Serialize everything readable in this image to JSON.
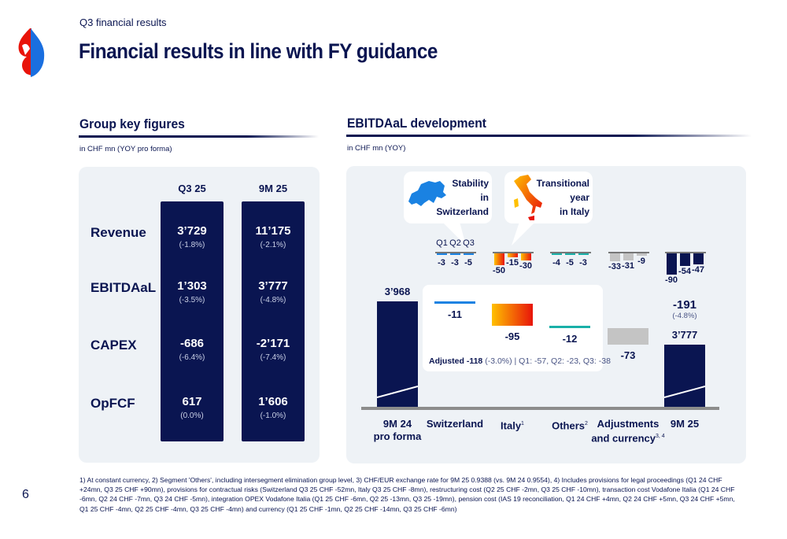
{
  "header": {
    "kicker": "Q3 financial results",
    "title": "Financial results in line with FY guidance",
    "page_number": "6",
    "logo": "Swisscom"
  },
  "colors": {
    "navy": "#0a1551",
    "switzerland": "#1a82e2",
    "italy_start": "#ffc000",
    "italy_end": "#e8140a",
    "others": "#19b0a8",
    "adjustments": "#c4c4c4",
    "panel": "#eef2f6"
  },
  "key_figures": {
    "title": "Group key figures",
    "unit": "in CHF mn (YOY pro forma)",
    "columns": [
      "Q3 25",
      "9M 25"
    ],
    "rows": [
      {
        "label": "Revenue",
        "q3": "3’729",
        "q3_pct": "(-1.8%)",
        "m9": "11’175",
        "m9_pct": "(-2.1%)"
      },
      {
        "label": "EBITDAaL",
        "q3": "1’303",
        "q3_pct": "(-3.5%)",
        "m9": "3’777",
        "m9_pct": "(-4.8%)"
      },
      {
        "label": "CAPEX",
        "q3": "-686",
        "q3_pct": "(-6.4%)",
        "m9": "-2’171",
        "m9_pct": "(-7.4%)"
      },
      {
        "label": "OpFCF",
        "q3": "617",
        "q3_pct": "(0.0%)",
        "m9": "1’606",
        "m9_pct": "(-1.0%)"
      }
    ]
  },
  "chart_data": {
    "type": "waterfall",
    "title": "EBITDAaL development",
    "unit": "in CHF mn (YOY)",
    "callouts": [
      {
        "text": [
          "Stability",
          "in",
          "Switzerland"
        ],
        "icon": "switzerland-map-icon"
      },
      {
        "text": [
          "Transitional",
          "year",
          "in Italy"
        ],
        "icon": "italy-map-icon"
      }
    ],
    "quarter_labels": [
      "Q1",
      "Q2",
      "Q3"
    ],
    "categories": [
      {
        "name": "9M 24",
        "name2": "pro forma",
        "kind": "total",
        "value": 3968,
        "label": "3’968"
      },
      {
        "name": "Switzerland",
        "kind": "delta",
        "value": -11,
        "label": "-11",
        "quarters": [
          -3,
          -3,
          -5
        ]
      },
      {
        "name": "Italy",
        "sup": "1",
        "kind": "delta",
        "value": -95,
        "label": "-95",
        "quarters": [
          -50,
          -15,
          -30
        ]
      },
      {
        "name": "Others",
        "sup": "2",
        "kind": "delta",
        "value": -12,
        "label": "-12",
        "quarters": [
          -4,
          -5,
          -3
        ]
      },
      {
        "name": "Adjustments",
        "name2": "and currency",
        "sup": "3, 4",
        "kind": "delta",
        "value": -73,
        "label": "-73",
        "quarters": [
          -33,
          -31,
          -9
        ]
      },
      {
        "name": "9M 25",
        "kind": "total",
        "value": 3777,
        "label": "3’777",
        "quarters": [
          -90,
          -54,
          -47
        ],
        "delta_label": "-191",
        "delta_pct": "(-4.8%)"
      }
    ],
    "adjusted": {
      "bold": "Adjusted -118",
      "rest": " (-3.0%) | Q1: -57, Q2: -23, Q3: -38"
    }
  },
  "footnote": "1) At constant currency, 2) Segment 'Others', including intersegment elimination group level, 3) CHF/EUR exchange rate for 9M 25 0.9388 (vs. 9M 24 0.9554), 4) Includes provisions for legal proceedings (Q1 24 CHF +24mn, Q3 25 CHF +90mn), provisions for contractual risks (Switzerland Q3 25 CHF -52mn, Italy Q3 25 CHF -8mn), restructuring cost (Q2 25 CHF -2mn, Q3 25 CHF -10mn), transaction cost Vodafone Italia (Q1 24 CHF -6mn, Q2 24 CHF -7mn, Q3 24 CHF -5mn), integration OPEX Vodafone Italia (Q1 25 CHF -6mn, Q2 25 -13mn, Q3 25 -19mn), pension cost (IAS 19 reconciliation, Q1 24 CHF +4mn, Q2 24 CHF +5mn, Q3 24 CHF +5mn, Q1 25 CHF -4mn, Q2 25 CHF -4mn, Q3 25 CHF -4mn) and currency (Q1 25 CHF -1mn, Q2 25 CHF -14mn, Q3 25 CHF -6mn)"
}
